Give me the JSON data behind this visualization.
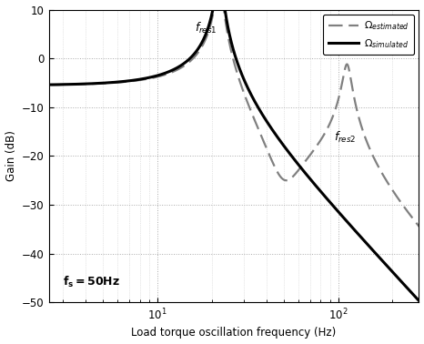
{
  "xlabel": "Load torque oscillation frequency (Hz)",
  "ylabel": "Gain (dB)",
  "xlim": [
    2.5,
    280
  ],
  "ylim": [
    -50,
    10
  ],
  "yticks": [
    10,
    0,
    -10,
    -20,
    -30,
    -40,
    -50
  ],
  "simulated_color": "#000000",
  "estimated_color": "#808080",
  "background_color": "#ffffff",
  "legend_simulated": "$\\Omega_{simulated}$",
  "legend_estimated": "$\\Omega_{estimated}$",
  "f_res1": 22,
  "zeta_res1": 0.035,
  "dc_gain_db": -5.5,
  "f_res2": 112,
  "zeta_res2": 0.05,
  "f_notch": 50,
  "zeta_notch": 0.18,
  "fres1_x": 16,
  "fres1_y": 5.5,
  "fres2_x": 95,
  "fres2_y": -17,
  "fs_x": 3.0,
  "fs_y": -46.5
}
